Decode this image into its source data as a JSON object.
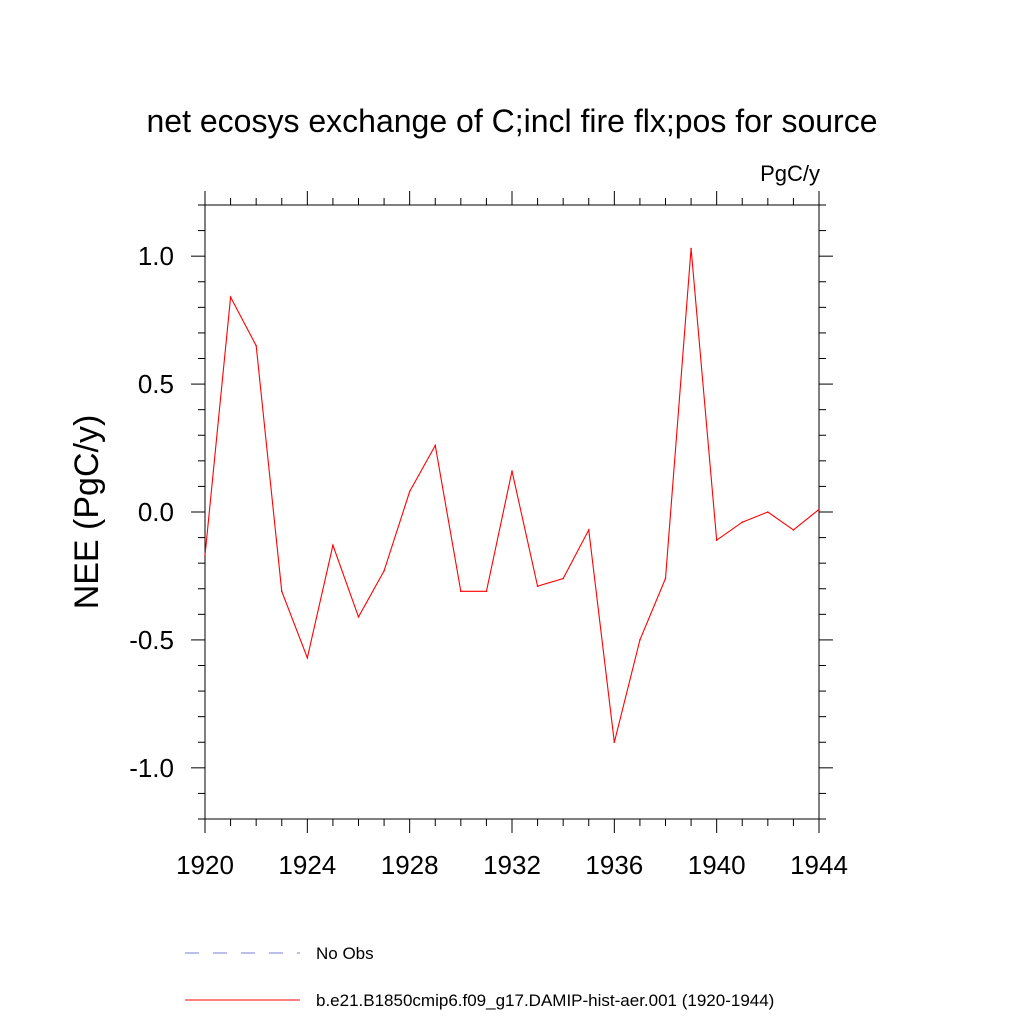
{
  "chart_data": {
    "type": "line",
    "title": "net ecosys exchange of C;incl fire flx;pos for source",
    "units_label": "PgC/y",
    "ylabel": "NEE  (PgC/y)",
    "xlabel": "",
    "xlim": [
      1920,
      1944
    ],
    "ylim": [
      -1.2,
      1.2
    ],
    "x_ticks": [
      "1920",
      "1924",
      "1928",
      "1932",
      "1936",
      "1940",
      "1944"
    ],
    "y_ticks": [
      "1.0",
      "0.5",
      "0.0",
      "-0.5",
      "-1.0"
    ],
    "grid": false,
    "legend_position": "bottom",
    "series": [
      {
        "name": "b.e21.B1850cmip6.f09_g17.DAMIP-hist-aer.001 (1920-1944)",
        "color": "#ff0000",
        "style": "solid",
        "x": [
          1920,
          1921,
          1922,
          1923,
          1924,
          1925,
          1926,
          1927,
          1928,
          1929,
          1930,
          1931,
          1932,
          1933,
          1934,
          1935,
          1936,
          1937,
          1938,
          1939,
          1940,
          1941,
          1942,
          1943,
          1944
        ],
        "values": [
          -0.17,
          0.84,
          0.65,
          -0.31,
          -0.57,
          -0.13,
          -0.41,
          -0.23,
          0.08,
          0.26,
          -0.31,
          -0.31,
          0.16,
          -0.29,
          -0.26,
          -0.07,
          -0.9,
          -0.5,
          -0.26,
          1.03,
          -0.11,
          -0.04,
          0.0,
          -0.07,
          0.01
        ]
      }
    ],
    "legend": [
      {
        "label": "No Obs",
        "color": "#7b7bd6",
        "style": "dashed"
      },
      {
        "label": "b.e21.B1850cmip6.f09_g17.DAMIP-hist-aer.001 (1920-1944)",
        "color": "#ff0000",
        "style": "solid"
      }
    ]
  }
}
